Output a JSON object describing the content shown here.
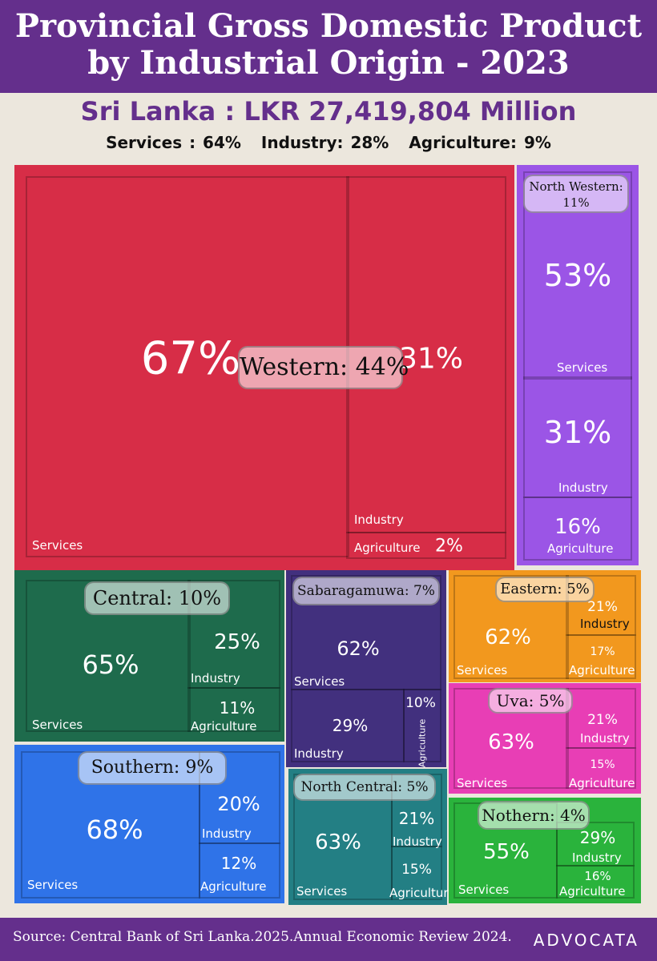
{
  "header": {
    "title_line1": "Provincial Gross Domestic Product",
    "title_line2": "by Industrial Origin - 2023"
  },
  "total": "Sri Lanka : LKR 27,419,804 Million",
  "national_mix": [
    {
      "label": "Services : 64%"
    },
    {
      "label": "Industry: 28%"
    },
    {
      "label": "Agriculture: 9%"
    }
  ],
  "footer": {
    "source": "Source: Central Bank of Sri Lanka.2025.Annual Economic Review 2024.",
    "logo": "ADVOCATA"
  },
  "chart_data": {
    "type": "treemap",
    "title": "Provincial Gross Domestic Product by Industrial Origin - 2023",
    "provinces": [
      {
        "name": "Western",
        "label": "Western: 44%",
        "share": 44,
        "color": "#d72d47",
        "sectors": {
          "Services": 67,
          "Industry": 31,
          "Agriculture": 2
        }
      },
      {
        "name": "North Western",
        "label": "North Western: 11%",
        "label_line1": "North Western:",
        "label_line2": "11%",
        "share": 11,
        "color": "#9b55e6",
        "sectors": {
          "Services": 53,
          "Industry": 31,
          "Agriculture": 16
        }
      },
      {
        "name": "Central",
        "label": "Central: 10%",
        "share": 10,
        "color": "#1e6b4c",
        "sectors": {
          "Services": 65,
          "Industry": 25,
          "Agriculture": 11
        }
      },
      {
        "name": "Sabaragamuwa",
        "label": "Sabaragamuwa: 7%",
        "share": 7,
        "color": "#42307e",
        "sectors": {
          "Services": 62,
          "Industry": 29,
          "Agriculture": 10
        }
      },
      {
        "name": "Eastern",
        "label": "Eastern: 5%",
        "share": 5,
        "color": "#f2981e",
        "sectors": {
          "Services": 62,
          "Industry": 21,
          "Agriculture": 17
        }
      },
      {
        "name": "Uva",
        "label": "Uva: 5%",
        "share": 5,
        "color": "#e83eb5",
        "sectors": {
          "Services": 63,
          "Industry": 21,
          "Agriculture": 15
        }
      },
      {
        "name": "Southern",
        "label": "Southern: 9%",
        "share": 9,
        "color": "#2f73e8",
        "sectors": {
          "Services": 68,
          "Industry": 20,
          "Agriculture": 12
        }
      },
      {
        "name": "North Central",
        "label": "North Central: 5%",
        "share": 5,
        "color": "#237f84",
        "sectors": {
          "Services": 63,
          "Industry": 21,
          "Agriculture": 15
        }
      },
      {
        "name": "Nothern",
        "label": "Nothern: 4%",
        "share": 4,
        "color": "#2ab33c",
        "sectors": {
          "Services": 55,
          "Industry": 29,
          "Agriculture": 16
        }
      }
    ]
  }
}
